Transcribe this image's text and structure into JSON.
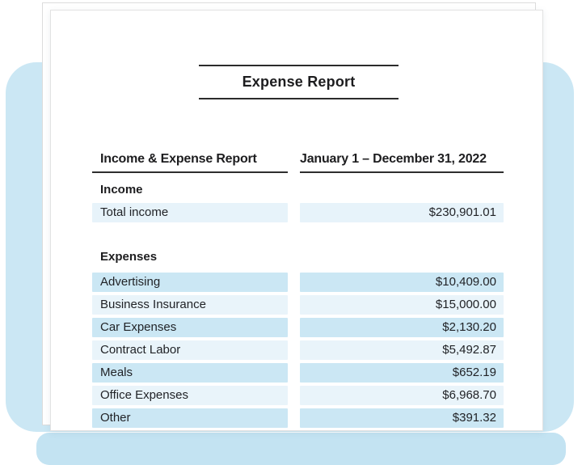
{
  "document": {
    "title": "Expense Report",
    "table": {
      "header_left": "Income & Expense Report",
      "header_right": "January 1 – December 31, 2022",
      "sections": [
        {
          "label": "Income",
          "rows": [
            {
              "label": "Total income",
              "value": "$230,901.01"
            }
          ]
        },
        {
          "label": "Expenses",
          "rows": [
            {
              "label": "Advertising",
              "value": "$10,409.00"
            },
            {
              "label": "Business Insurance",
              "value": "$15,000.00"
            },
            {
              "label": "Car Expenses",
              "value": "$2,130.20"
            },
            {
              "label": "Contract Labor",
              "value": "$5,492.87"
            },
            {
              "label": "Meals",
              "value": "$652.19"
            },
            {
              "label": "Office Expenses",
              "value": "$6,968.70"
            },
            {
              "label": "Other",
              "value": "$391.32"
            }
          ]
        }
      ]
    }
  },
  "colors": {
    "background_accent": "#cbe7f4",
    "background_accent_strip": "#c3e3f2",
    "stripe_dark": "#cbe7f4",
    "stripe_light": "#e9f4fa",
    "income_row": "#e7f3fa",
    "text": "#212327"
  }
}
